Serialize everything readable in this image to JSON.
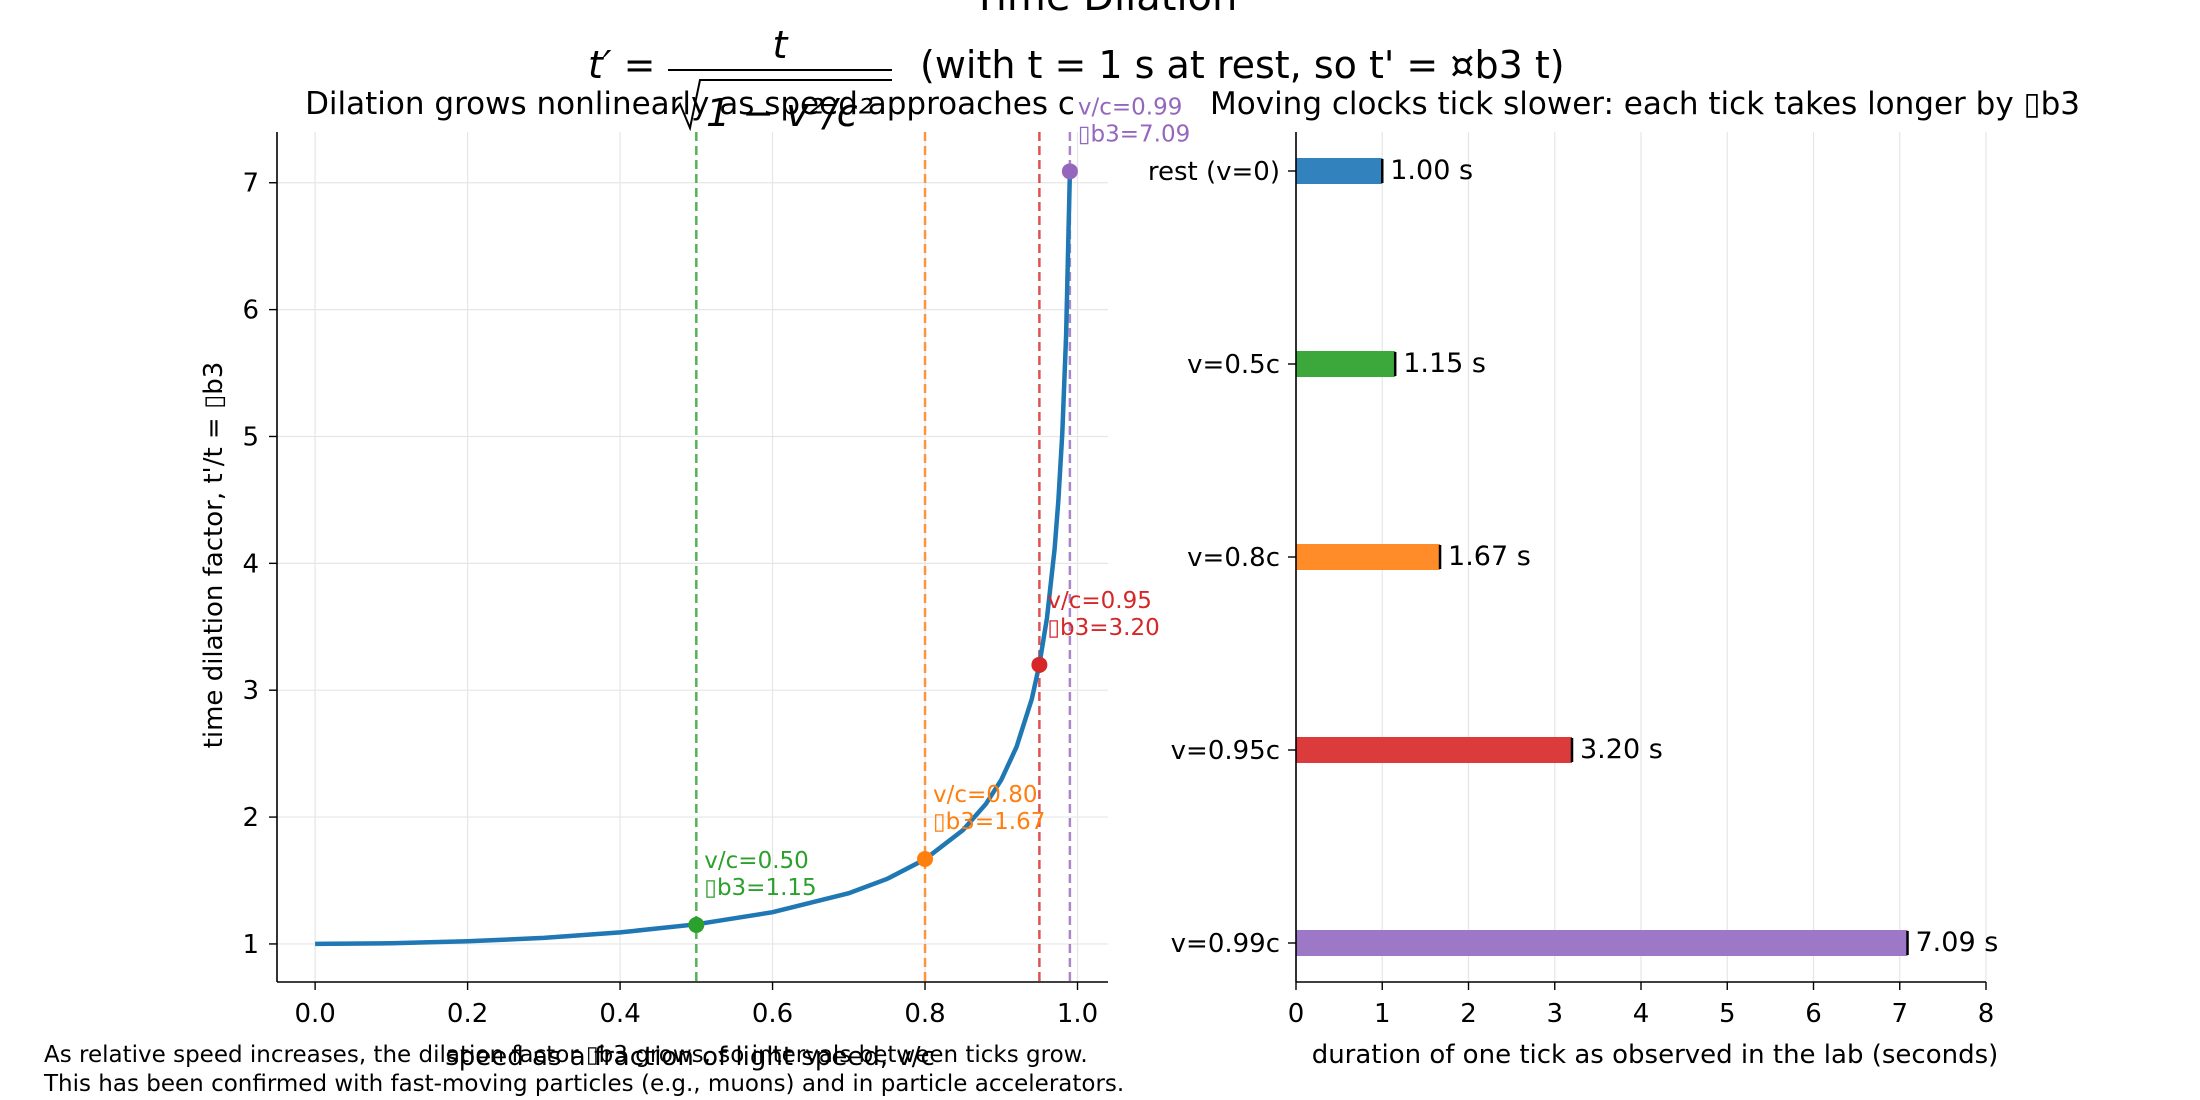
{
  "figure": {
    "title": "Time Dilation",
    "formula_note": "(with t = 1 s at rest, so t' = ¤b3 t)",
    "footnote_lines": [
      "As relative speed increases, the dilation factor ▯b3 grows, so intervals between ticks grow.",
      "This has been confirmed with fast-moving particles (e.g., muons) and in particle accelerators."
    ]
  },
  "colors": {
    "curve": "#1f77b4",
    "rest": "#3182bd",
    "v050": "#2ca02c",
    "v080": "#ff7f0e",
    "v095": "#d62728",
    "v099": "#9467bd"
  },
  "chart_data": [
    {
      "type": "line",
      "title": "Dilation grows nonlinearly as speed approaches c",
      "xlabel": "speed as a fraction of light speed, v/c",
      "ylabel": "time dilation factor, t'/t = ▯b3",
      "xlim": [
        -0.05,
        1.04
      ],
      "ylim": [
        0.7,
        7.4
      ],
      "xticks": [
        0.0,
        0.2,
        0.4,
        0.6,
        0.8,
        1.0
      ],
      "xtick_labels": [
        "0.0",
        "0.2",
        "0.4",
        "0.6",
        "0.8",
        "1.0"
      ],
      "yticks": [
        1,
        2,
        3,
        4,
        5,
        6,
        7
      ],
      "ytick_labels": [
        "1",
        "2",
        "3",
        "4",
        "5",
        "6",
        "7"
      ],
      "grid": true,
      "curve": {
        "x": [
          0.0,
          0.1,
          0.2,
          0.3,
          0.4,
          0.5,
          0.6,
          0.7,
          0.75,
          0.8,
          0.85,
          0.88,
          0.9,
          0.92,
          0.94,
          0.95,
          0.96,
          0.97,
          0.975,
          0.98,
          0.985,
          0.99
        ],
        "y": [
          1.0,
          1.005,
          1.021,
          1.048,
          1.091,
          1.155,
          1.25,
          1.4,
          1.512,
          1.667,
          1.898,
          2.105,
          2.294,
          2.552,
          2.931,
          3.203,
          3.571,
          4.113,
          4.5,
          5.025,
          5.795,
          7.089
        ]
      },
      "markers": [
        {
          "x": 0.5,
          "y": 1.15,
          "label_line1": "v/c=0.50",
          "label_line2": "▯b3=1.15",
          "color": "#2ca02c"
        },
        {
          "x": 0.8,
          "y": 1.67,
          "label_line1": "v/c=0.80",
          "label_line2": "▯b3=1.67",
          "color": "#ff7f0e"
        },
        {
          "x": 0.95,
          "y": 3.2,
          "label_line1": "v/c=0.95",
          "label_line2": "▯b3=3.20",
          "color": "#d62728"
        },
        {
          "x": 0.99,
          "y": 7.09,
          "label_line1": "v/c=0.99",
          "label_line2": "▯b3=7.09",
          "color": "#9467bd"
        }
      ]
    },
    {
      "type": "bar",
      "orientation": "horizontal",
      "title": "Moving clocks tick slower: each tick takes longer by ▯b3",
      "xlabel": "duration of one tick as observed in the lab (seconds)",
      "xlim": [
        0,
        8
      ],
      "xticks": [
        0,
        1,
        2,
        3,
        4,
        5,
        6,
        7,
        8
      ],
      "xtick_labels": [
        "0",
        "1",
        "2",
        "3",
        "4",
        "5",
        "6",
        "7",
        "8"
      ],
      "grid": true,
      "categories": [
        "rest (v=0)",
        "v=0.5c",
        "v=0.8c",
        "v=0.95c",
        "v=0.99c"
      ],
      "values": [
        1.0,
        1.15,
        1.67,
        3.2,
        7.09
      ],
      "value_labels": [
        "1.00 s",
        "1.15 s",
        "1.67 s",
        "3.20 s",
        "7.09 s"
      ],
      "bar_colors": [
        "#3182bd",
        "#3ca83c",
        "#ff8c28",
        "#db3b3b",
        "#9c78c6"
      ]
    }
  ]
}
